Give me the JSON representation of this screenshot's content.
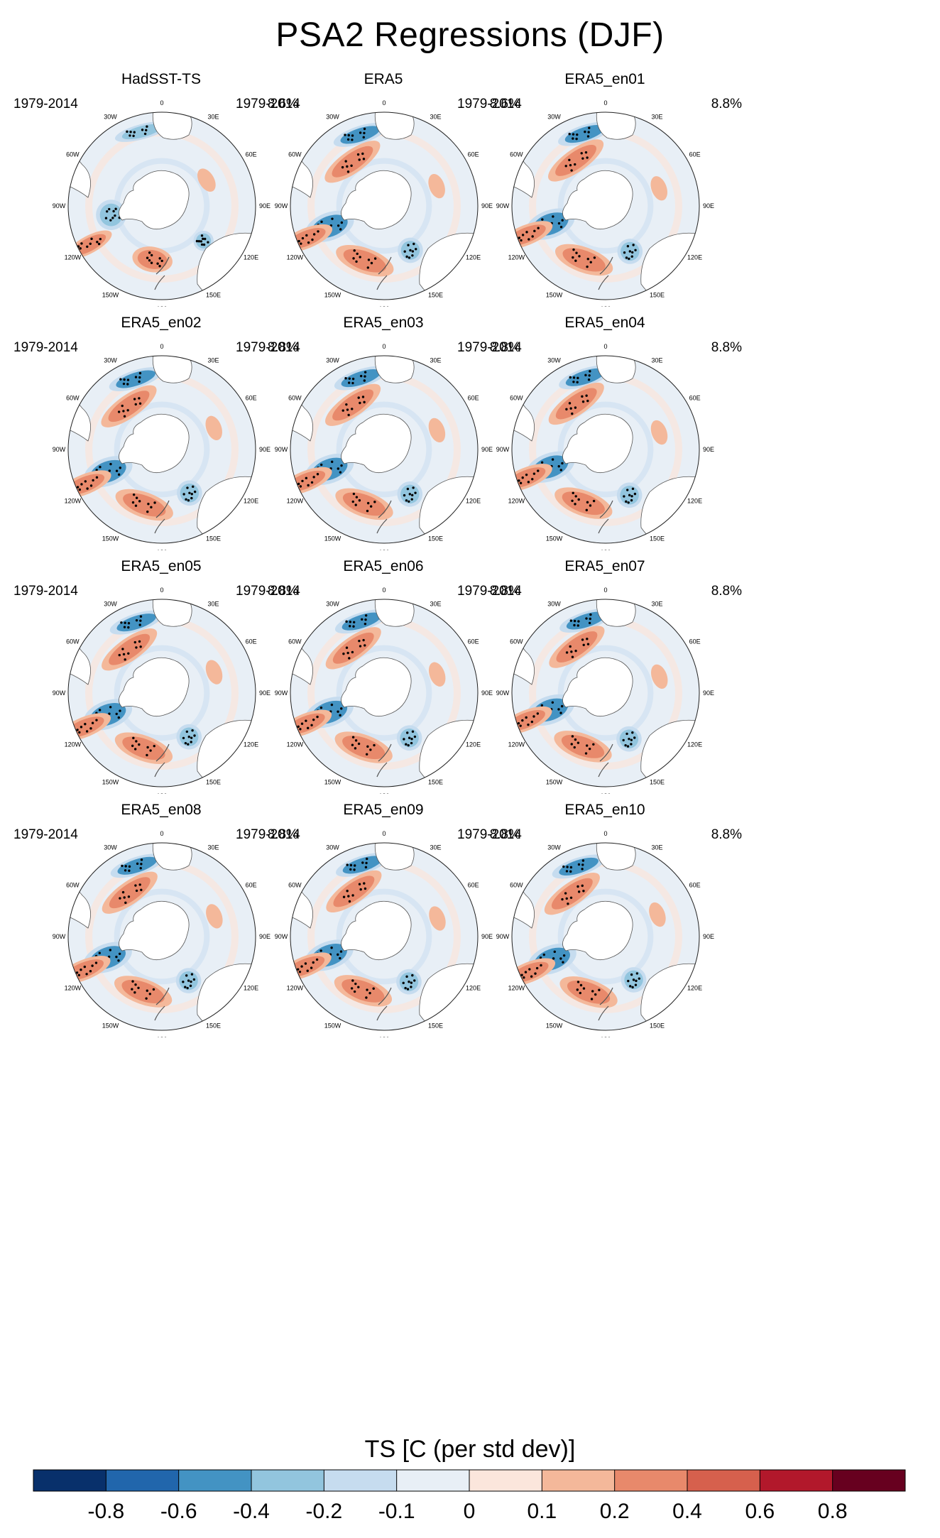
{
  "title": "PSA2 Regressions (DJF)",
  "map_labels": {
    "lon": [
      "0",
      "30E",
      "60E",
      "90E",
      "120E",
      "150E",
      "180",
      "150W",
      "120W",
      "90W",
      "60W",
      "30W"
    ]
  },
  "panels": [
    {
      "title": "HadSST-TS",
      "years": "1979-2014",
      "percent": "8.6%"
    },
    {
      "title": "ERA5",
      "years": "1979-2014",
      "percent": "8.6%"
    },
    {
      "title": "ERA5_en01",
      "years": "1979-2014",
      "percent": "8.8%"
    },
    {
      "title": "ERA5_en02",
      "years": "1979-2014",
      "percent": "8.8%"
    },
    {
      "title": "ERA5_en03",
      "years": "1979-2014",
      "percent": "8.8%"
    },
    {
      "title": "ERA5_en04",
      "years": "1979-2014",
      "percent": "8.8%"
    },
    {
      "title": "ERA5_en05",
      "years": "1979-2014",
      "percent": "8.8%"
    },
    {
      "title": "ERA5_en06",
      "years": "1979-2014",
      "percent": "8.8%"
    },
    {
      "title": "ERA5_en07",
      "years": "1979-2014",
      "percent": "8.8%"
    },
    {
      "title": "ERA5_en08",
      "years": "1979-2014",
      "percent": "8.8%"
    },
    {
      "title": "ERA5_en09",
      "years": "1979-2014",
      "percent": "8.8%"
    },
    {
      "title": "ERA5_en10",
      "years": "1979-2014",
      "percent": "8.8%"
    }
  ],
  "colorbar": {
    "title": "TS [C (per std dev)]",
    "tick_labels": [
      "-0.8",
      "-0.6",
      "-0.4",
      "-0.2",
      "-0.1",
      "0",
      "0.1",
      "0.2",
      "0.4",
      "0.6",
      "0.8"
    ],
    "colors": [
      "#08306b",
      "#2166ac",
      "#4393c3",
      "#92c5de",
      "#c6dcef",
      "#e8eff6",
      "#fbe6dc",
      "#f4b89a",
      "#e8896b",
      "#d6604d",
      "#b2182b",
      "#67001f"
    ]
  },
  "colors": {
    "land": "#ffffff",
    "ocean_neutral": "#e8eff6",
    "coast": "#555555",
    "stipple": "#000000"
  }
}
